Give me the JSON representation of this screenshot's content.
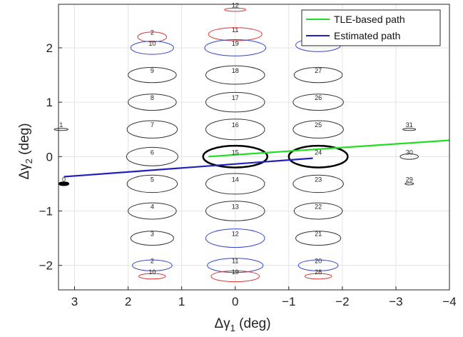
{
  "chart_data": {
    "type": "scatter",
    "title": "",
    "xlabel": "Δγ",
    "xlabel_sub": "1",
    "xlabel_unit": " (deg)",
    "ylabel": "Δγ",
    "ylabel_sub": "2",
    "ylabel_unit": " (deg)",
    "x_reversed": true,
    "xlim": [
      3.3,
      -4.0
    ],
    "ylim": [
      -2.45,
      2.8
    ],
    "xticks": [
      3,
      2,
      1,
      0,
      -1,
      -2,
      -3,
      -4
    ],
    "xtick_labels": [
      "3",
      "2",
      "1",
      "0",
      "−1",
      "−2",
      "−3",
      "−4"
    ],
    "yticks": [
      -2,
      -1,
      0,
      1,
      2
    ],
    "ytick_labels": [
      "−2",
      "−1",
      "0",
      "1",
      "2"
    ],
    "grid": true,
    "legend_position": "top-right",
    "colors": {
      "tle": "#22dd22",
      "estimated": "#2222bb",
      "black": "#000000",
      "red": "#dd3333",
      "blue": "#3344cc",
      "gray": "#333333",
      "grid": "#e4e4e4"
    },
    "series": [
      {
        "name": "TLE-based path",
        "color": "#22dd22",
        "x": [
          0.5,
          -4.0
        ],
        "y": [
          0.0,
          0.3
        ]
      },
      {
        "name": "Estimated path",
        "color": "#2222bb",
        "x": [
          3.2,
          -1.45
        ],
        "y": [
          -0.37,
          -0.03
        ]
      }
    ],
    "beams": [
      {
        "label": "1",
        "x": 3.25,
        "y": 0.5,
        "rx": 0.13,
        "ry": 0.02,
        "color": "gray",
        "width": 1
      },
      {
        "label": "0",
        "x": 3.2,
        "y": -0.5,
        "rx": 0.08,
        "ry": 0.02,
        "color": "black",
        "width": 3
      },
      {
        "label": "2",
        "x": 1.55,
        "y": 2.2,
        "rx": 0.27,
        "ry": 0.09,
        "color": "red",
        "width": 1
      },
      {
        "label": "10",
        "x": 1.55,
        "y": 2.0,
        "rx": 0.4,
        "ry": 0.12,
        "color": "blue",
        "width": 1
      },
      {
        "label": "9",
        "x": 1.55,
        "y": 1.5,
        "rx": 0.45,
        "ry": 0.14,
        "color": "gray",
        "width": 1
      },
      {
        "label": "8",
        "x": 1.55,
        "y": 1.0,
        "rx": 0.45,
        "ry": 0.15,
        "color": "gray",
        "width": 1
      },
      {
        "label": "7",
        "x": 1.55,
        "y": 0.5,
        "rx": 0.47,
        "ry": 0.16,
        "color": "gray",
        "width": 1
      },
      {
        "label": "6",
        "x": 1.55,
        "y": 0.0,
        "rx": 0.48,
        "ry": 0.17,
        "color": "gray",
        "width": 1
      },
      {
        "label": "5",
        "x": 1.55,
        "y": -0.5,
        "rx": 0.47,
        "ry": 0.16,
        "color": "gray",
        "width": 1
      },
      {
        "label": "4",
        "x": 1.55,
        "y": -1.0,
        "rx": 0.45,
        "ry": 0.15,
        "color": "gray",
        "width": 1
      },
      {
        "label": "3",
        "x": 1.55,
        "y": -1.5,
        "rx": 0.4,
        "ry": 0.13,
        "color": "gray",
        "width": 1
      },
      {
        "label": "2",
        "x": 1.55,
        "y": -2.0,
        "rx": 0.37,
        "ry": 0.1,
        "color": "blue",
        "width": 1
      },
      {
        "label": "10",
        "x": 1.55,
        "y": -2.2,
        "rx": 0.25,
        "ry": 0.05,
        "color": "red",
        "width": 1
      },
      {
        "label": "12",
        "x": 0.0,
        "y": 2.7,
        "rx": 0.2,
        "ry": 0.03,
        "color": "red",
        "width": 1
      },
      {
        "label": "11",
        "x": 0.0,
        "y": 2.25,
        "rx": 0.5,
        "ry": 0.12,
        "color": "red",
        "width": 1
      },
      {
        "label": "19",
        "x": 0.0,
        "y": 2.0,
        "rx": 0.57,
        "ry": 0.15,
        "color": "blue",
        "width": 1
      },
      {
        "label": "18",
        "x": 0.0,
        "y": 1.5,
        "rx": 0.55,
        "ry": 0.17,
        "color": "gray",
        "width": 1
      },
      {
        "label": "17",
        "x": 0.0,
        "y": 1.0,
        "rx": 0.55,
        "ry": 0.18,
        "color": "gray",
        "width": 1
      },
      {
        "label": "16",
        "x": 0.0,
        "y": 0.5,
        "rx": 0.55,
        "ry": 0.19,
        "color": "gray",
        "width": 1
      },
      {
        "label": "15",
        "x": 0.0,
        "y": 0.0,
        "rx": 0.6,
        "ry": 0.2,
        "color": "black",
        "width": 2.5
      },
      {
        "label": "14",
        "x": 0.0,
        "y": -0.5,
        "rx": 0.55,
        "ry": 0.19,
        "color": "gray",
        "width": 1
      },
      {
        "label": "13",
        "x": 0.0,
        "y": -1.0,
        "rx": 0.55,
        "ry": 0.18,
        "color": "gray",
        "width": 1
      },
      {
        "label": "12",
        "x": 0.0,
        "y": -1.5,
        "rx": 0.55,
        "ry": 0.17,
        "color": "blue",
        "width": 1
      },
      {
        "label": "11",
        "x": 0.0,
        "y": -2.0,
        "rx": 0.52,
        "ry": 0.13,
        "color": "blue",
        "width": 1
      },
      {
        "label": "19",
        "x": 0.0,
        "y": -2.2,
        "rx": 0.45,
        "ry": 0.1,
        "color": "red",
        "width": 1
      },
      {
        "label": "28",
        "x": -1.55,
        "y": 2.05,
        "rx": 0.42,
        "ry": 0.12,
        "color": "blue",
        "width": 1
      },
      {
        "label": "27",
        "x": -1.55,
        "y": 1.5,
        "rx": 0.45,
        "ry": 0.14,
        "color": "gray",
        "width": 1
      },
      {
        "label": "26",
        "x": -1.55,
        "y": 1.0,
        "rx": 0.47,
        "ry": 0.15,
        "color": "gray",
        "width": 1
      },
      {
        "label": "25",
        "x": -1.55,
        "y": 0.5,
        "rx": 0.47,
        "ry": 0.16,
        "color": "gray",
        "width": 1
      },
      {
        "label": "24",
        "x": -1.55,
        "y": 0.0,
        "rx": 0.55,
        "ry": 0.2,
        "color": "black",
        "width": 2.5
      },
      {
        "label": "23",
        "x": -1.55,
        "y": -0.5,
        "rx": 0.47,
        "ry": 0.16,
        "color": "gray",
        "width": 1
      },
      {
        "label": "22",
        "x": -1.55,
        "y": -1.0,
        "rx": 0.45,
        "ry": 0.15,
        "color": "gray",
        "width": 1
      },
      {
        "label": "21",
        "x": -1.55,
        "y": -1.5,
        "rx": 0.42,
        "ry": 0.13,
        "color": "gray",
        "width": 1
      },
      {
        "label": "20",
        "x": -1.55,
        "y": -2.0,
        "rx": 0.37,
        "ry": 0.1,
        "color": "blue",
        "width": 1
      },
      {
        "label": "28",
        "x": -1.55,
        "y": -2.2,
        "rx": 0.25,
        "ry": 0.05,
        "color": "red",
        "width": 1
      },
      {
        "label": "31",
        "x": -3.25,
        "y": 0.5,
        "rx": 0.12,
        "ry": 0.02,
        "color": "gray",
        "width": 1
      },
      {
        "label": "30",
        "x": -3.25,
        "y": 0.0,
        "rx": 0.17,
        "ry": 0.05,
        "color": "gray",
        "width": 1
      },
      {
        "label": "29",
        "x": -3.25,
        "y": -0.5,
        "rx": 0.08,
        "ry": 0.02,
        "color": "gray",
        "width": 1
      }
    ]
  }
}
